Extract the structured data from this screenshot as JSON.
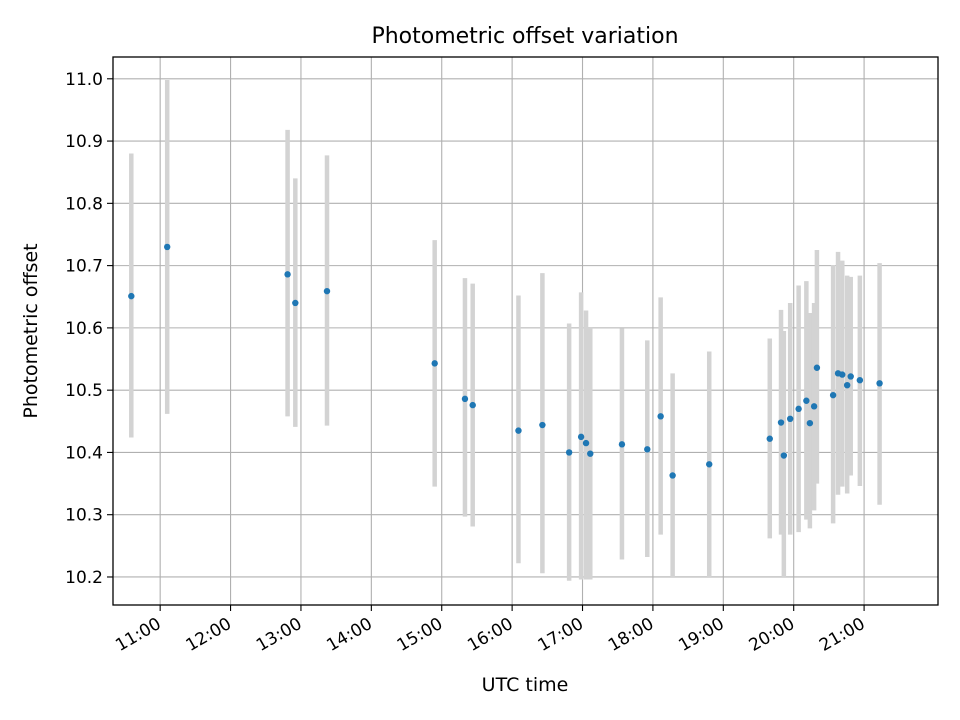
{
  "chart_data": {
    "type": "scatter",
    "title": "Photometric offset variation",
    "xlabel": "UTC time",
    "ylabel": "Photometric offset",
    "x_unit": "UTC hour of day (decimal hours)",
    "xlim": [
      10.33,
      22.05
    ],
    "ylim": [
      10.155,
      11.035
    ],
    "x_ticks": [
      {
        "value": 11,
        "label": "11:00"
      },
      {
        "value": 12,
        "label": "12:00"
      },
      {
        "value": 13,
        "label": "13:00"
      },
      {
        "value": 14,
        "label": "14:00"
      },
      {
        "value": 15,
        "label": "15:00"
      },
      {
        "value": 16,
        "label": "16:00"
      },
      {
        "value": 17,
        "label": "17:00"
      },
      {
        "value": 18,
        "label": "18:00"
      },
      {
        "value": 19,
        "label": "19:00"
      },
      {
        "value": 20,
        "label": "20:00"
      },
      {
        "value": 21,
        "label": "21:00"
      }
    ],
    "y_ticks": [
      {
        "value": 10.2,
        "label": "10.2"
      },
      {
        "value": 10.3,
        "label": "10.3"
      },
      {
        "value": 10.4,
        "label": "10.4"
      },
      {
        "value": 10.5,
        "label": "10.5"
      },
      {
        "value": 10.6,
        "label": "10.6"
      },
      {
        "value": 10.7,
        "label": "10.7"
      },
      {
        "value": 10.8,
        "label": "10.8"
      },
      {
        "value": 10.9,
        "label": "10.9"
      },
      {
        "value": 11.0,
        "label": "11.0"
      }
    ],
    "grid": true,
    "colors": {
      "points": "#1f77b4",
      "errorbars": "#d3d3d3",
      "grid": "#b0b0b0"
    },
    "points": [
      {
        "x": 10.59,
        "y": 10.651,
        "ylow": 10.424,
        "yhigh": 10.88
      },
      {
        "x": 11.1,
        "y": 10.73,
        "ylow": 10.462,
        "yhigh": 10.998
      },
      {
        "x": 12.81,
        "y": 10.686,
        "ylow": 10.458,
        "yhigh": 10.918
      },
      {
        "x": 12.92,
        "y": 10.64,
        "ylow": 10.441,
        "yhigh": 10.84
      },
      {
        "x": 13.37,
        "y": 10.659,
        "ylow": 10.443,
        "yhigh": 10.877
      },
      {
        "x": 14.9,
        "y": 10.543,
        "ylow": 10.345,
        "yhigh": 10.741
      },
      {
        "x": 15.33,
        "y": 10.486,
        "ylow": 10.297,
        "yhigh": 10.68
      },
      {
        "x": 15.44,
        "y": 10.476,
        "ylow": 10.281,
        "yhigh": 10.671
      },
      {
        "x": 16.09,
        "y": 10.435,
        "ylow": 10.222,
        "yhigh": 10.652
      },
      {
        "x": 16.43,
        "y": 10.444,
        "ylow": 10.206,
        "yhigh": 10.688
      },
      {
        "x": 16.81,
        "y": 10.4,
        "ylow": 10.194,
        "yhigh": 10.607
      },
      {
        "x": 16.98,
        "y": 10.425,
        "ylow": 10.196,
        "yhigh": 10.657
      },
      {
        "x": 17.05,
        "y": 10.415,
        "ylow": 10.196,
        "yhigh": 10.628
      },
      {
        "x": 17.11,
        "y": 10.398,
        "ylow": 10.196,
        "yhigh": 10.6
      },
      {
        "x": 17.56,
        "y": 10.413,
        "ylow": 10.228,
        "yhigh": 10.599
      },
      {
        "x": 17.92,
        "y": 10.405,
        "ylow": 10.232,
        "yhigh": 10.58
      },
      {
        "x": 18.11,
        "y": 10.458,
        "ylow": 10.268,
        "yhigh": 10.649
      },
      {
        "x": 18.28,
        "y": 10.363,
        "ylow": 10.2,
        "yhigh": 10.527
      },
      {
        "x": 18.8,
        "y": 10.381,
        "ylow": 10.2,
        "yhigh": 10.562
      },
      {
        "x": 19.66,
        "y": 10.422,
        "ylow": 10.262,
        "yhigh": 10.583
      },
      {
        "x": 19.82,
        "y": 10.448,
        "ylow": 10.268,
        "yhigh": 10.629
      },
      {
        "x": 19.86,
        "y": 10.395,
        "ylow": 10.2,
        "yhigh": 10.595
      },
      {
        "x": 19.95,
        "y": 10.454,
        "ylow": 10.268,
        "yhigh": 10.64
      },
      {
        "x": 20.07,
        "y": 10.47,
        "ylow": 10.272,
        "yhigh": 10.668
      },
      {
        "x": 20.18,
        "y": 10.483,
        "ylow": 10.292,
        "yhigh": 10.675
      },
      {
        "x": 20.23,
        "y": 10.447,
        "ylow": 10.278,
        "yhigh": 10.624
      },
      {
        "x": 20.29,
        "y": 10.474,
        "ylow": 10.307,
        "yhigh": 10.64
      },
      {
        "x": 20.33,
        "y": 10.536,
        "ylow": 10.35,
        "yhigh": 10.725
      },
      {
        "x": 20.56,
        "y": 10.492,
        "ylow": 10.286,
        "yhigh": 10.701
      },
      {
        "x": 20.63,
        "y": 10.527,
        "ylow": 10.332,
        "yhigh": 10.722
      },
      {
        "x": 20.69,
        "y": 10.525,
        "ylow": 10.345,
        "yhigh": 10.708
      },
      {
        "x": 20.76,
        "y": 10.508,
        "ylow": 10.334,
        "yhigh": 10.684
      },
      {
        "x": 20.81,
        "y": 10.522,
        "ylow": 10.363,
        "yhigh": 10.682
      },
      {
        "x": 20.94,
        "y": 10.516,
        "ylow": 10.346,
        "yhigh": 10.684
      },
      {
        "x": 21.22,
        "y": 10.511,
        "ylow": 10.316,
        "yhigh": 10.704
      }
    ]
  }
}
